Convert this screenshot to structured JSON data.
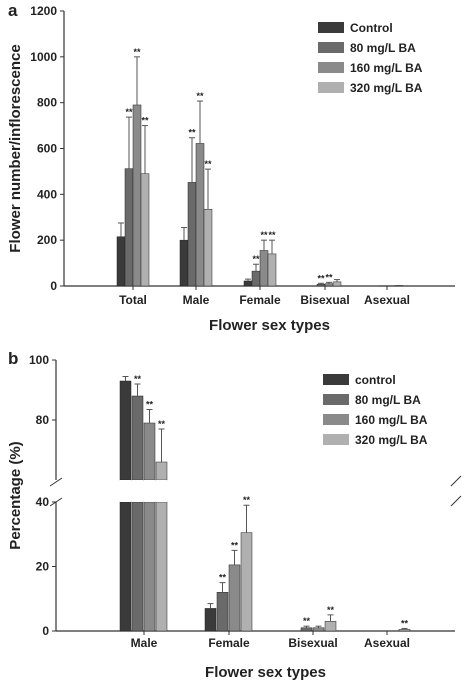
{
  "chart_data": [
    {
      "type": "bar",
      "panel_label": "a",
      "categories": [
        "Total",
        "Male",
        "Female",
        "Bisexual",
        "Asexual"
      ],
      "series": [
        {
          "name": "Control",
          "values": [
            215,
            200,
            22,
            0,
            0
          ],
          "errors": [
            60,
            55,
            8,
            0,
            0
          ],
          "sig": [
            "",
            "",
            "",
            "",
            ""
          ]
        },
        {
          "name": "80 mg/L BA",
          "values": [
            512,
            452,
            65,
            8,
            1
          ],
          "errors": [
            225,
            195,
            30,
            4,
            0
          ],
          "sig": [
            "**",
            "**",
            "**",
            "**",
            ""
          ]
        },
        {
          "name": "160 mg/L BA",
          "values": [
            790,
            622,
            155,
            10,
            1
          ],
          "errors": [
            210,
            185,
            45,
            6,
            0
          ],
          "sig": [
            "**",
            "**",
            "**",
            "**",
            ""
          ]
        },
        {
          "name": "320 mg/L BA",
          "values": [
            490,
            335,
            140,
            18,
            2
          ],
          "errors": [
            210,
            175,
            60,
            10,
            0
          ],
          "sig": [
            "**",
            "**",
            "**",
            "",
            ""
          ]
        }
      ],
      "xlabel": "Flower sex types",
      "ylabel": "Flower number/inflorescence",
      "ylim": [
        0,
        1200
      ],
      "yticks": [
        "0",
        "200",
        "400",
        "600",
        "800",
        "1000",
        "1200"
      ],
      "colors": [
        "#3a3a3a",
        "#6a6a6a",
        "#8a8a8a",
        "#b0b0b0"
      ],
      "legend_position": "top-right"
    },
    {
      "type": "bar",
      "panel_label": "b",
      "categories": [
        "Male",
        "Female",
        "Bisexual",
        "Asexual"
      ],
      "series": [
        {
          "name": "control",
          "values": [
            93,
            7,
            0,
            0
          ],
          "errors": [
            1.5,
            1.5,
            0,
            0
          ],
          "sig": [
            "",
            "",
            "",
            ""
          ]
        },
        {
          "name": "80 mg/L BA",
          "values": [
            88,
            12,
            1,
            0
          ],
          "errors": [
            4,
            3,
            0.5,
            0
          ],
          "sig": [
            "**",
            "**",
            "**",
            ""
          ]
        },
        {
          "name": "160 mg/L BA",
          "values": [
            79,
            20.5,
            1,
            0
          ],
          "errors": [
            4.5,
            4.5,
            0.5,
            0
          ],
          "sig": [
            "**",
            "**",
            "",
            ""
          ]
        },
        {
          "name": "320 mg/L BA",
          "values": [
            66,
            30.5,
            3,
            0.5
          ],
          "errors": [
            11,
            8.5,
            2,
            0.3
          ],
          "sig": [
            "**",
            "**",
            "**",
            "**"
          ]
        }
      ],
      "xlabel": "Flower sex types",
      "ylabel": "Percentage (%)",
      "axis_break": [
        40,
        60
      ],
      "ylim": [
        0,
        100
      ],
      "yticks": [
        "0",
        "20",
        "40",
        "80",
        "100"
      ],
      "colors": [
        "#3a3a3a",
        "#6a6a6a",
        "#8a8a8a",
        "#b0b0b0"
      ],
      "legend_position": "top-right"
    }
  ]
}
